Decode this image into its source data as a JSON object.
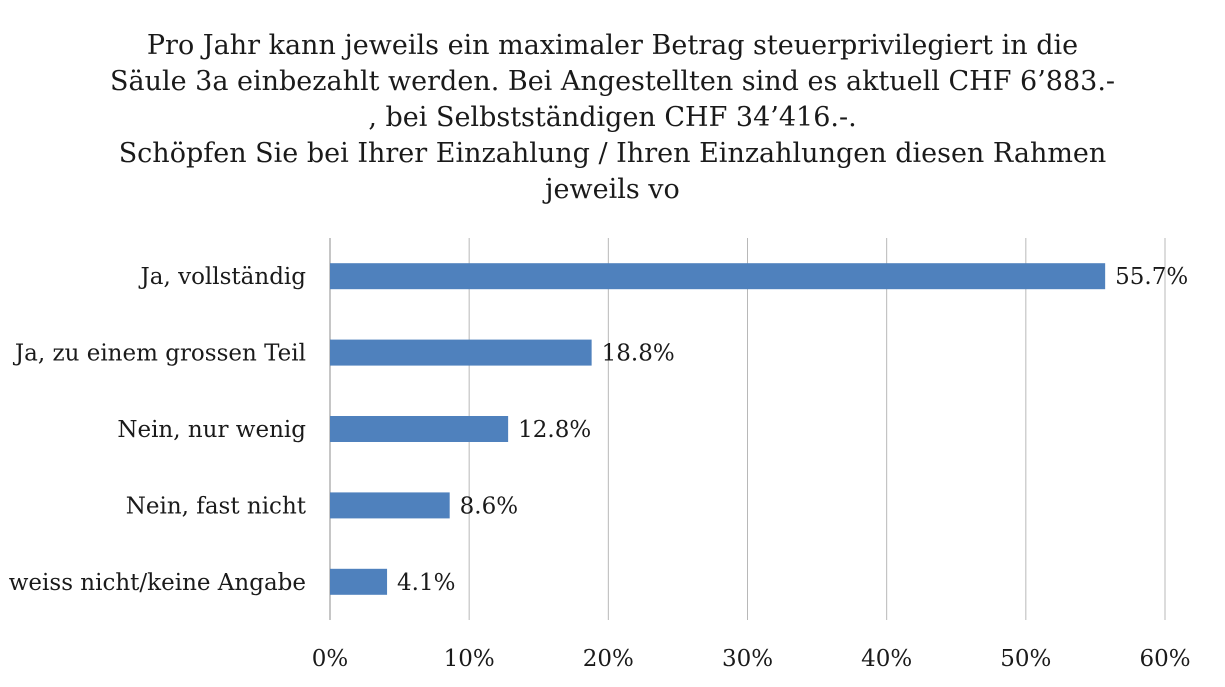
{
  "chart_data": {
    "type": "bar",
    "orientation": "horizontal",
    "title_lines": [
      "Pro Jahr kann jeweils ein maximaler Betrag steuerprivilegiert in die",
      "Säule 3a einbezahlt werden. Bei Angestellten sind es aktuell CHF 6’883.-",
      ", bei Selbstständigen CHF 34’416.-.",
      "Schöpfen Sie bei Ihrer Einzahlung / Ihren Einzahlungen diesen Rahmen",
      "jeweils vo"
    ],
    "categories": [
      "Ja, vollständig",
      "Ja, zu einem grossen Teil",
      "Nein, nur wenig",
      "Nein, fast nicht",
      "weiss nicht/keine Angabe"
    ],
    "values": [
      55.7,
      18.8,
      12.8,
      8.6,
      4.1
    ],
    "data_labels": [
      "55.7%",
      "18.8%",
      "12.8%",
      "8.6%",
      "4.1%"
    ],
    "xlim": [
      0,
      60
    ],
    "x_ticks": [
      "0%",
      "10%",
      "20%",
      "30%",
      "40%",
      "50%",
      "60%"
    ],
    "grid": "vertical",
    "legend": "none",
    "bar_color": "#4f81bd",
    "grid_color": "#b8b8b8"
  }
}
